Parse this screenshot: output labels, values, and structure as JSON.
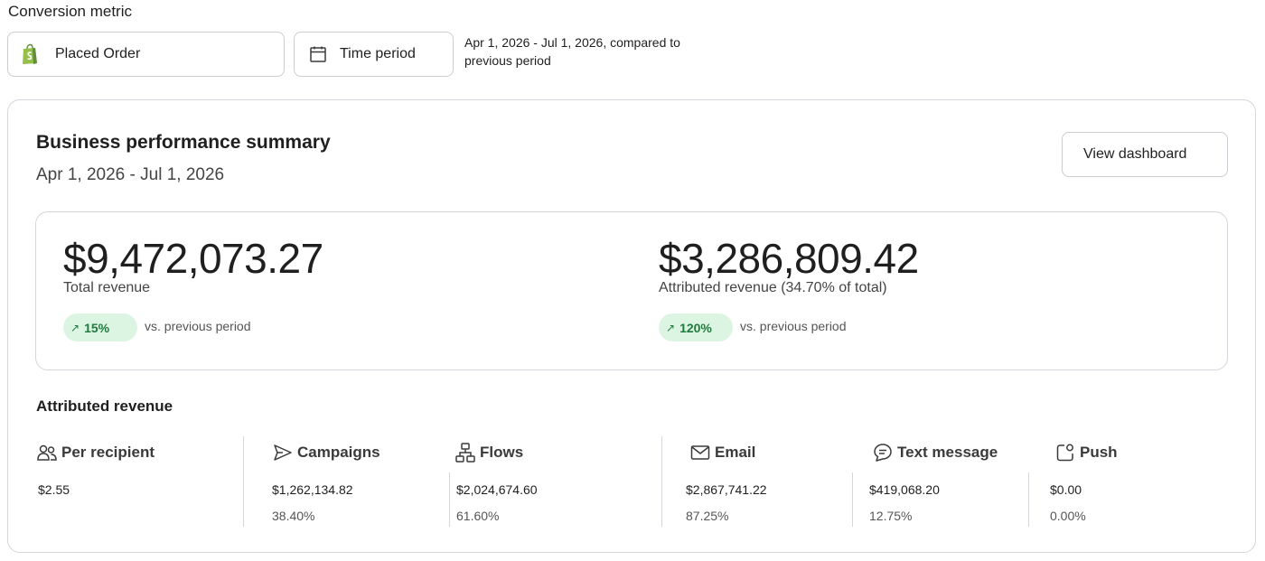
{
  "header": {
    "conversion_metric_label": "Conversion metric",
    "placed_order_label": "Placed Order",
    "time_period_label": "Time period",
    "date_range_note": "Apr 1, 2026 - Jul 1, 2026, compared to previous period"
  },
  "summary": {
    "title": "Business performance summary",
    "date_range": "Apr 1, 2026 - Jul 1, 2026",
    "view_dashboard_label": "View dashboard",
    "total_revenue": {
      "amount": "$9,472,073.27",
      "label": "Total revenue",
      "change": "15%",
      "comparison": "vs. previous period"
    },
    "attributed_revenue": {
      "amount": "$3,286,809.42",
      "label": "Attributed revenue (34.70% of total)",
      "change": "120%",
      "comparison": "vs. previous period"
    }
  },
  "attributed": {
    "title": "Attributed revenue",
    "metrics": [
      {
        "label": "Per recipient",
        "value": "$2.55",
        "percent": "",
        "icon": "people-icon"
      },
      {
        "label": "Campaigns",
        "value": "$1,262,134.82",
        "percent": "38.40%",
        "icon": "send-icon"
      },
      {
        "label": "Flows",
        "value": "$2,024,674.60",
        "percent": "61.60%",
        "icon": "flow-icon"
      },
      {
        "label": "Email",
        "value": "$2,867,741.22",
        "percent": "87.25%",
        "icon": "mail-icon"
      },
      {
        "label": "Text message",
        "value": "$419,068.20",
        "percent": "12.75%",
        "icon": "chat-icon"
      },
      {
        "label": "Push",
        "value": "$0.00",
        "percent": "0.00%",
        "icon": "push-icon"
      }
    ]
  },
  "colors": {
    "positive_badge_bg": "#dcf5e3",
    "positive_badge_text": "#1e7b3c",
    "shopify_green": "#95bf47",
    "border": "#d3d6da"
  }
}
